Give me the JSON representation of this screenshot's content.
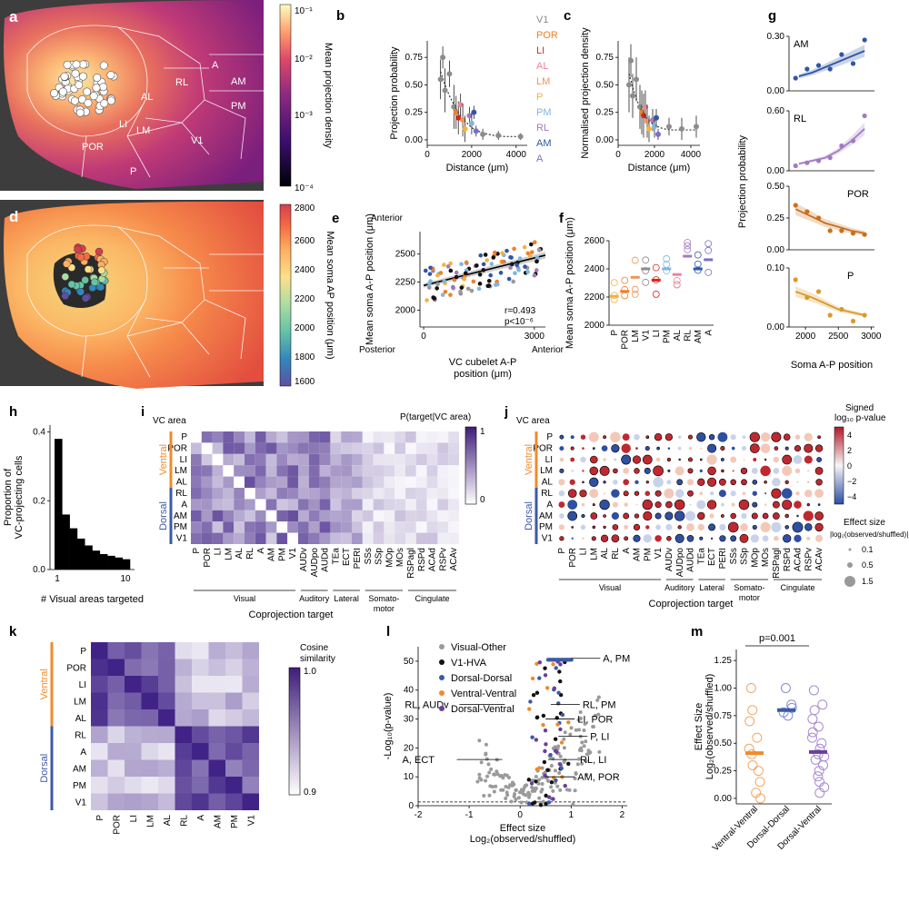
{
  "panels": {
    "a": {
      "letter": "a",
      "colorbar_title": "Mean projection density",
      "ticks": [
        "10⁻¹",
        "10⁻²",
        "10⁻³",
        "10⁻⁴"
      ],
      "area_labels": [
        "A",
        "AM",
        "RL",
        "AL",
        "PM",
        "LI",
        "LM",
        "V1",
        "POR",
        "P"
      ]
    },
    "d": {
      "letter": "d",
      "colorbar_title": "Mean soma AP position (μm)",
      "ticks": [
        "2800",
        "2600",
        "2400",
        "2200",
        "2000",
        "1800",
        "1600"
      ]
    },
    "b": {
      "letter": "b"
    },
    "c": {
      "letter": "c"
    },
    "e": {
      "letter": "e",
      "anterior": "Anterior",
      "posterior": "Posterior",
      "anterior2": "Anterior",
      "stat_r": "r=0.493",
      "stat_p": "p<10⁻⁶"
    },
    "f": {
      "letter": "f"
    },
    "g": {
      "letter": "g",
      "ylabel": "Projection probability",
      "xlabel": "Soma A-P position"
    },
    "h": {
      "letter": "h"
    },
    "i": {
      "letter": "i",
      "vc_label": "VC area",
      "cbar_title": "P(target|VC area)",
      "cbar_hi": "1",
      "cbar_lo": "0",
      "xlabel": "Coprojection target"
    },
    "j": {
      "letter": "j",
      "vc_label": "VC area",
      "cbar_title1": "Signed",
      "cbar_title2": "log₁₀ p-value",
      "cbar_ticks": [
        "4",
        "2",
        "0",
        "−2",
        "−4"
      ],
      "size_title1": "Effect size",
      "size_title2": "|log₂(observed/shuffled)|",
      "size_vals": [
        "0.1",
        "0.5",
        "1.5"
      ],
      "xlabel": "Coprojection target"
    },
    "k": {
      "letter": "k",
      "cbar_title1": "Cosine",
      "cbar_title2": "similarity",
      "cbar_hi": "1.0",
      "cbar_lo": "0.9"
    },
    "l": {
      "letter": "l"
    },
    "m": {
      "letter": "m",
      "pval": "p=0.001"
    }
  },
  "groups": {
    "ventral": "Ventral",
    "dorsal": "Dorsal"
  },
  "target_groups": [
    "Visual",
    "Auditory",
    "Lateral",
    "Somato-\nmotor",
    "Cingulate"
  ],
  "targets": [
    "P",
    "POR",
    "LI",
    "LM",
    "AL",
    "RL",
    "A",
    "AM",
    "PM",
    "V1",
    "AUDv",
    "AUDpo",
    "AUDd",
    "TEa",
    "ECT",
    "PERI",
    "SSs",
    "SSp",
    "MOp",
    "MOs",
    "RSPagl",
    "RSPd",
    "ACAd",
    "RSPv",
    "ACAv"
  ],
  "vc_areas": [
    "P",
    "POR",
    "LI",
    "LM",
    "AL",
    "RL",
    "A",
    "AM",
    "PM",
    "V1"
  ],
  "colors": {
    "V1": "#8c8c8c",
    "POR": "#ef7f2a",
    "LI": "#d6261f",
    "AL": "#e8869a",
    "LM": "#ed9556",
    "P": "#f2b341",
    "PM": "#7fb6df",
    "RL": "#a27bbf",
    "AM": "#2f56a5",
    "A": "#7a6fc4",
    "dorsal": "#3c5aa6",
    "ventral": "#ef8b2c",
    "purple": "#6a3f9a",
    "black": "#111111",
    "gray": "#9a9a9a"
  },
  "chart_data": [
    {
      "id": "b",
      "type": "scatter",
      "xlabel": "Distance (μm)",
      "ylabel": "Projection probability",
      "xlim": [
        0,
        4500
      ],
      "ylim": [
        -0.05,
        0.9
      ],
      "xticks": [
        0,
        2000,
        4000
      ],
      "yticks": [
        0.0,
        0.25,
        0.5,
        0.75
      ],
      "legend": [
        "V1",
        "POR",
        "LI",
        "AL",
        "LM",
        "P",
        "PM",
        "RL",
        "AM",
        "A"
      ],
      "fit": {
        "x": [
          600,
          800,
          1000,
          1300,
          1600,
          2000,
          2500,
          3000,
          3500,
          4300
        ],
        "y": [
          0.62,
          0.5,
          0.4,
          0.28,
          0.19,
          0.11,
          0.06,
          0.04,
          0.03,
          0.03
        ]
      },
      "points": [
        {
          "x": 600,
          "y": 0.55,
          "e": 0.18,
          "c": "V1"
        },
        {
          "x": 700,
          "y": 0.75,
          "e": 0.1,
          "c": "V1"
        },
        {
          "x": 800,
          "y": 0.45,
          "e": 0.2,
          "c": "V1"
        },
        {
          "x": 1000,
          "y": 0.6,
          "e": 0.12,
          "c": "V1"
        },
        {
          "x": 1200,
          "y": 0.3,
          "e": 0.2,
          "c": "V1"
        },
        {
          "x": 1300,
          "y": 0.25,
          "e": 0.15,
          "c": "POR"
        },
        {
          "x": 1400,
          "y": 0.2,
          "e": 0.15,
          "c": "LI"
        },
        {
          "x": 1500,
          "y": 0.32,
          "e": 0.1,
          "c": "AL"
        },
        {
          "x": 1600,
          "y": 0.18,
          "e": 0.15,
          "c": "LM"
        },
        {
          "x": 1700,
          "y": 0.1,
          "e": 0.12,
          "c": "P"
        },
        {
          "x": 1900,
          "y": 0.22,
          "e": 0.08,
          "c": "RL"
        },
        {
          "x": 2000,
          "y": 0.15,
          "e": 0.1,
          "c": "PM"
        },
        {
          "x": 2100,
          "y": 0.25,
          "e": 0.06,
          "c": "AM"
        },
        {
          "x": 2200,
          "y": 0.08,
          "e": 0.05,
          "c": "A"
        },
        {
          "x": 2500,
          "y": 0.05,
          "e": 0.05,
          "c": "V1"
        },
        {
          "x": 3200,
          "y": 0.04,
          "e": 0.04,
          "c": "V1"
        },
        {
          "x": 4200,
          "y": 0.03,
          "e": 0.03,
          "c": "V1"
        }
      ]
    },
    {
      "id": "c",
      "type": "scatter",
      "xlabel": "Distance (μm)",
      "ylabel": "Normalised projection density",
      "xlim": [
        0,
        4500
      ],
      "ylim": [
        -0.05,
        0.9
      ],
      "xticks": [
        0,
        2000,
        4000
      ],
      "yticks": [
        0.0,
        0.25,
        0.5,
        0.75
      ],
      "fit": {
        "x": [
          600,
          800,
          1000,
          1300,
          1600,
          2000,
          2500,
          3000,
          3500,
          4300
        ],
        "y": [
          0.6,
          0.48,
          0.37,
          0.26,
          0.19,
          0.13,
          0.1,
          0.09,
          0.09,
          0.09
        ]
      },
      "points": [
        {
          "x": 600,
          "y": 0.5,
          "e": 0.25,
          "c": "V1"
        },
        {
          "x": 700,
          "y": 0.72,
          "e": 0.15,
          "c": "V1"
        },
        {
          "x": 800,
          "y": 0.4,
          "e": 0.2,
          "c": "V1"
        },
        {
          "x": 1000,
          "y": 0.55,
          "e": 0.2,
          "c": "V1"
        },
        {
          "x": 1200,
          "y": 0.3,
          "e": 0.2,
          "c": "V1"
        },
        {
          "x": 1300,
          "y": 0.25,
          "e": 0.2,
          "c": "POR"
        },
        {
          "x": 1400,
          "y": 0.22,
          "e": 0.2,
          "c": "LI"
        },
        {
          "x": 1500,
          "y": 0.3,
          "e": 0.15,
          "c": "AL"
        },
        {
          "x": 1600,
          "y": 0.17,
          "e": 0.15,
          "c": "LM"
        },
        {
          "x": 1700,
          "y": 0.1,
          "e": 0.12,
          "c": "P"
        },
        {
          "x": 1900,
          "y": 0.18,
          "e": 0.1,
          "c": "RL"
        },
        {
          "x": 2000,
          "y": 0.12,
          "e": 0.1,
          "c": "PM"
        },
        {
          "x": 2100,
          "y": 0.2,
          "e": 0.08,
          "c": "AM"
        },
        {
          "x": 2200,
          "y": 0.05,
          "e": 0.05,
          "c": "A"
        },
        {
          "x": 2800,
          "y": 0.12,
          "e": 0.08,
          "c": "V1"
        },
        {
          "x": 3500,
          "y": 0.1,
          "e": 0.1,
          "c": "V1"
        },
        {
          "x": 4300,
          "y": 0.12,
          "e": 0.1,
          "c": "V1"
        }
      ]
    },
    {
      "id": "e",
      "type": "scatter",
      "xlabel": "VC cubelet A-P position (μm)",
      "ylabel": "Mean soma A-P position (μm)",
      "xlim": [
        -100,
        3300
      ],
      "ylim": [
        1850,
        2700
      ],
      "xticks": [
        0,
        3000
      ],
      "yticks": [
        2000,
        2250,
        2500
      ],
      "fit": {
        "x": [
          0,
          3300
        ],
        "y": [
          2220,
          2490
        ]
      }
    },
    {
      "id": "f",
      "type": "dot-median",
      "ylabel": "Mean soma A-P position (μm)",
      "ylim": [
        2000,
        2600
      ],
      "yticks": [
        2000,
        2200,
        2400,
        2600
      ],
      "categories": [
        "P",
        "POR",
        "LM",
        "V1",
        "LI",
        "PM",
        "AL",
        "RL",
        "AM",
        "A"
      ],
      "medians": [
        2205,
        2240,
        2340,
        2400,
        2320,
        2400,
        2360,
        2490,
        2400,
        2465
      ]
    },
    {
      "id": "g",
      "type": "line",
      "xlabel": "Soma A-P position",
      "ylabel": "Projection probability",
      "xticks": [
        2000,
        2500,
        3000
      ],
      "xlim": [
        1750,
        3050
      ],
      "subplots": [
        {
          "name": "AM",
          "ylim": [
            0,
            0.3
          ],
          "yticks": [
            "0.00",
            "0.30"
          ],
          "x": [
            1900,
            2100,
            2300,
            2500,
            2700,
            2900
          ],
          "y": [
            0.08,
            0.1,
            0.13,
            0.16,
            0.19,
            0.22
          ],
          "pts": [
            0.07,
            0.12,
            0.14,
            0.12,
            0.2,
            0.15,
            0.28
          ]
        },
        {
          "name": "RL",
          "ylim": [
            0,
            0.6
          ],
          "yticks": [
            "0.00",
            "0.60"
          ],
          "x": [
            1900,
            2100,
            2300,
            2500,
            2700,
            2900
          ],
          "y": [
            0.07,
            0.1,
            0.13,
            0.2,
            0.3,
            0.42
          ],
          "pts": [
            0.05,
            0.08,
            0.1,
            0.13,
            0.25,
            0.3,
            0.55
          ]
        },
        {
          "name": "POR",
          "ylim": [
            0,
            0.5
          ],
          "yticks": [
            "0.00",
            "0.25",
            "0.50"
          ],
          "x": [
            1850,
            2100,
            2300,
            2500,
            2700,
            2900
          ],
          "y": [
            0.32,
            0.26,
            0.21,
            0.18,
            0.15,
            0.13
          ],
          "pts": [
            0.35,
            0.3,
            0.25,
            0.15,
            0.15,
            0.13,
            0.12
          ]
        },
        {
          "name": "P",
          "ylim": [
            0,
            0.1
          ],
          "yticks": [
            "0.00",
            "0.10"
          ],
          "x": [
            1850,
            2100,
            2300,
            2500,
            2700,
            2900
          ],
          "y": [
            0.06,
            0.05,
            0.04,
            0.03,
            0.025,
            0.02
          ],
          "pts": [
            0.08,
            0.05,
            0.06,
            0.02,
            0.03,
            0.01,
            0.02
          ]
        }
      ]
    },
    {
      "id": "h",
      "type": "histogram",
      "xlabel": "# Visual areas targeted",
      "ylabel": "Proportion of\nVC-projecting cells",
      "xticks": [
        "1",
        "10"
      ],
      "yticks": [
        "0.0",
        "0.2",
        "0.4"
      ],
      "ylim": [
        0,
        0.42
      ],
      "values": [
        0.38,
        0.16,
        0.12,
        0.09,
        0.07,
        0.055,
        0.045,
        0.04,
        0.035,
        0.03
      ]
    },
    {
      "id": "l",
      "type": "scatter",
      "xlabel": "Effect size",
      "xlabel2": "Log₂(observed/shuffled)",
      "ylabel": "-Log₁₀(p-value)",
      "xlim": [
        -2,
        2.1
      ],
      "ylim": [
        0,
        55
      ],
      "xticks": [
        -2,
        -1,
        0,
        1,
        2
      ],
      "yticks": [
        0,
        10,
        20,
        30,
        40,
        50
      ],
      "legend": [
        "Visual-Other",
        "V1-HVA",
        "Dorsal-Dorsal",
        "Ventral-Ventral",
        "Dorsal-Ventral"
      ],
      "annotations": [
        {
          "t": "A, PM",
          "x": 1.0,
          "y": 51
        },
        {
          "t": "RL, AUDv",
          "x": -0.3,
          "y": 35
        },
        {
          "t": "RL, PM",
          "x": 0.6,
          "y": 35
        },
        {
          "t": "LI, POR",
          "x": 0.5,
          "y": 30
        },
        {
          "t": "P, LI",
          "x": 0.75,
          "y": 24
        },
        {
          "t": "A, ECT",
          "x": -0.35,
          "y": 16
        },
        {
          "t": "RL, LI",
          "x": 0.55,
          "y": 16
        },
        {
          "t": "AM, POR",
          "x": 0.5,
          "y": 10
        }
      ]
    },
    {
      "id": "m",
      "type": "dot-median",
      "ylabel": "Effect Size\nLog₂(observed/shuffled)",
      "ylim": [
        -0.05,
        1.35
      ],
      "yticks": [
        "0.00",
        "0.25",
        "0.50",
        "0.75",
        "1.00",
        "1.25"
      ],
      "categories": [
        "Ventral-Ventral",
        "Dorsal-Dorsal",
        "Dorsal-Ventral"
      ],
      "medians": [
        0.41,
        0.8,
        0.42
      ],
      "points": [
        [
          1.0,
          0.8,
          0.7,
          0.55,
          0.45,
          0.4,
          0.3,
          0.25,
          0.15,
          0.05,
          0.0
        ],
        [
          1.0,
          0.85,
          0.82,
          0.78,
          0.75
        ],
        [
          0.98,
          0.85,
          0.8,
          0.72,
          0.65,
          0.6,
          0.55,
          0.5,
          0.45,
          0.4,
          0.38,
          0.35,
          0.3,
          0.25,
          0.2,
          0.15,
          0.1,
          0.05
        ]
      ]
    }
  ]
}
